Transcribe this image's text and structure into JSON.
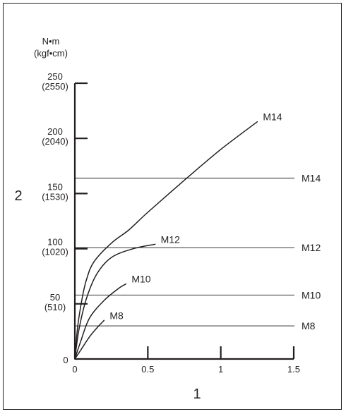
{
  "chart_data": {
    "type": "line",
    "units": {
      "primary": "N•m",
      "secondary": "(kgf•cm)"
    },
    "xlabel": "1",
    "ylabel": "2",
    "xlim": [
      0,
      1.5
    ],
    "ylim": [
      0,
      250
    ],
    "x_ticks": [
      {
        "value": 0,
        "label": "0"
      },
      {
        "value": 0.5,
        "label": "0.5"
      },
      {
        "value": 1,
        "label": "1"
      },
      {
        "value": 1.5,
        "label": "1.5"
      }
    ],
    "y_ticks": [
      {
        "value": 0,
        "label": "0",
        "sub": ""
      },
      {
        "value": 50,
        "label": "50",
        "sub": "(510)"
      },
      {
        "value": 100,
        "label": "100",
        "sub": "(1020)"
      },
      {
        "value": 150,
        "label": "150",
        "sub": "(1530)"
      },
      {
        "value": 200,
        "label": "200",
        "sub": "(2040)"
      },
      {
        "value": 250,
        "label": "250",
        "sub": "(2550)"
      }
    ],
    "curves": [
      {
        "name": "M8",
        "points": [
          [
            0,
            0
          ],
          [
            0.04,
            8
          ],
          [
            0.1,
            20
          ],
          [
            0.15,
            28
          ],
          [
            0.2,
            35
          ]
        ]
      },
      {
        "name": "M10",
        "points": [
          [
            0,
            0
          ],
          [
            0.04,
            16
          ],
          [
            0.1,
            37
          ],
          [
            0.2,
            53
          ],
          [
            0.3,
            64
          ],
          [
            0.35,
            68
          ]
        ]
      },
      {
        "name": "M12",
        "points": [
          [
            0,
            0
          ],
          [
            0.03,
            28
          ],
          [
            0.08,
            55
          ],
          [
            0.15,
            77
          ],
          [
            0.25,
            92
          ],
          [
            0.4,
            100
          ],
          [
            0.55,
            104
          ]
        ]
      },
      {
        "name": "M14",
        "points": [
          [
            0,
            0
          ],
          [
            0.02,
            30
          ],
          [
            0.05,
            55
          ],
          [
            0.08,
            72
          ],
          [
            0.13,
            88
          ],
          [
            0.25,
            105
          ],
          [
            0.37,
            117
          ],
          [
            0.5,
            133
          ],
          [
            0.75,
            162
          ],
          [
            1,
            190
          ],
          [
            1.25,
            215
          ]
        ]
      }
    ],
    "reference_lines": [
      {
        "name": "M8",
        "value": 30
      },
      {
        "name": "M10",
        "value": 58
      },
      {
        "name": "M12",
        "value": 101
      },
      {
        "name": "M14",
        "value": 164
      }
    ],
    "colors": {
      "ink": "#231f20",
      "background": "#ffffff"
    }
  }
}
